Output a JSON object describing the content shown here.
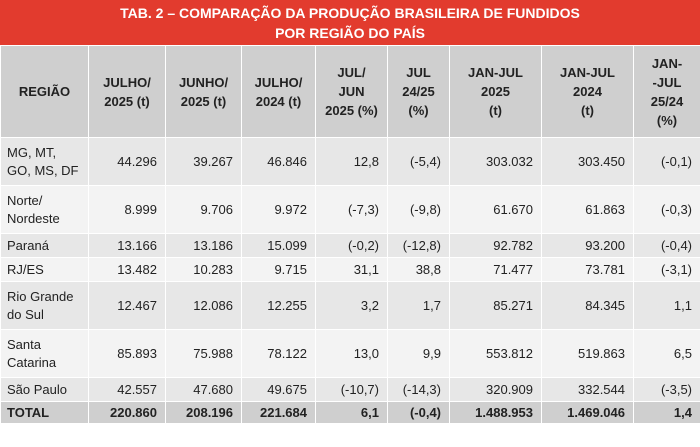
{
  "title": {
    "line1": "TAB. 2 – COMPARAÇÃO DA PRODUÇÃO BRASILEIRA DE FUNDIDOS",
    "line2": "POR REGIÃO DO PAÍS"
  },
  "headers": [
    [
      "REGIÃO"
    ],
    [
      "JULHO/",
      "2025 (t)"
    ],
    [
      "JUNHO/",
      "2025 (t)"
    ],
    [
      "JULHO/",
      "2024 (t)"
    ],
    [
      "JUL/",
      "JUN",
      "2025 (%)"
    ],
    [
      "JUL",
      "24/25",
      "(%)"
    ],
    [
      "JAN-JUL",
      "2025",
      "(t)"
    ],
    [
      "JAN-JUL",
      "2024",
      "(t)"
    ],
    [
      "JAN-",
      "-JUL",
      "25/24",
      "(%)"
    ]
  ],
  "rows": [
    {
      "region": [
        "MG, MT,",
        "GO, MS, DF"
      ],
      "values": [
        "44.296",
        "39.267",
        "46.846",
        "12,8",
        "(-5,4)",
        "303.032",
        "303.450",
        "(-0,1)"
      ]
    },
    {
      "region": [
        "Norte/",
        "Nordeste"
      ],
      "values": [
        "8.999",
        "9.706",
        "9.972",
        "(-7,3)",
        "(-9,8)",
        "61.670",
        "61.863",
        "(-0,3)"
      ]
    },
    {
      "region": [
        "Paraná"
      ],
      "values": [
        "13.166",
        "13.186",
        "15.099",
        "(-0,2)",
        "(-12,8)",
        "92.782",
        "93.200",
        "(-0,4)"
      ]
    },
    {
      "region": [
        "RJ/ES"
      ],
      "values": [
        "13.482",
        "10.283",
        "9.715",
        "31,1",
        "38,8",
        "71.477",
        "73.781",
        "(-3,1)"
      ]
    },
    {
      "region": [
        "Rio Grande",
        "do Sul"
      ],
      "values": [
        "12.467",
        "12.086",
        "12.255",
        "3,2",
        "1,7",
        "85.271",
        "84.345",
        "1,1"
      ]
    },
    {
      "region": [
        "Santa",
        "Catarina"
      ],
      "values": [
        "85.893",
        "75.988",
        "78.122",
        "13,0",
        "9,9",
        "553.812",
        "519.863",
        "6,5"
      ]
    },
    {
      "region": [
        "São Paulo"
      ],
      "values": [
        "42.557",
        "47.680",
        "49.675",
        "(-10,7)",
        "(-14,3)",
        "320.909",
        "332.544",
        "(-3,5)"
      ]
    }
  ],
  "total": {
    "region": "TOTAL",
    "values": [
      "220.860",
      "208.196",
      "221.684",
      "6,1",
      "(-0,4)",
      "1.488.953",
      "1.469.046",
      "1,4"
    ]
  }
}
